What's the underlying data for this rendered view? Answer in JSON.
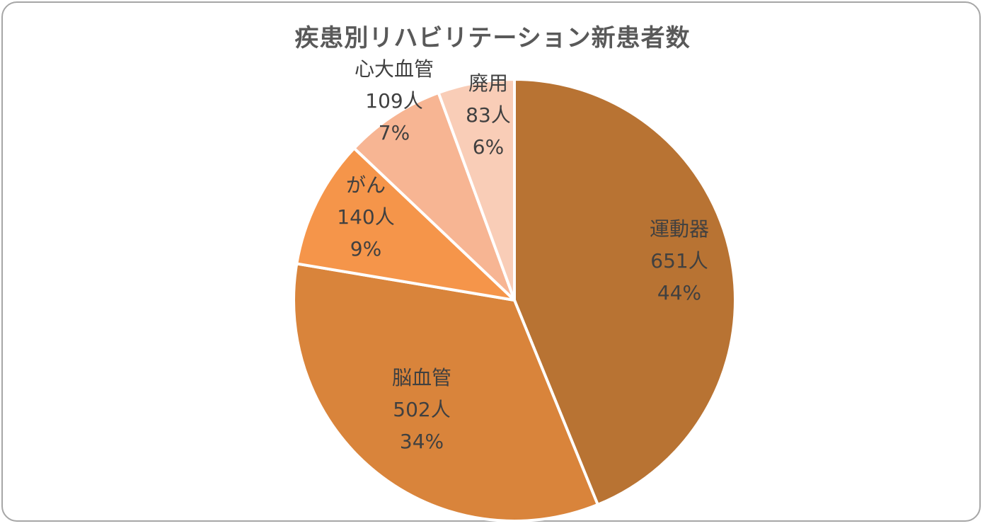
{
  "chart_data": {
    "type": "pie",
    "title": "疾患別リハビリテーション新患者数",
    "unit": "人",
    "slices": [
      {
        "name": "運動器",
        "value": 651,
        "value_label": "651人",
        "percent_label": "44%",
        "color": "#b87333"
      },
      {
        "name": "脳血管",
        "value": 502,
        "value_label": "502人",
        "percent_label": "34%",
        "color": "#d9843b"
      },
      {
        "name": "がん",
        "value": 140,
        "value_label": "140人",
        "percent_label": "9%",
        "color": "#f5954a"
      },
      {
        "name": "心大血管",
        "value": 109,
        "value_label": "109人",
        "percent_label": "7%",
        "color": "#f7b593"
      },
      {
        "name": "廃用",
        "value": 83,
        "value_label": "83人",
        "percent_label": "6%",
        "color": "#f9cdb7"
      }
    ],
    "start_angle_deg": 0,
    "direction": "clockwise",
    "legend": "none",
    "data_labels": "name, value, percent"
  }
}
